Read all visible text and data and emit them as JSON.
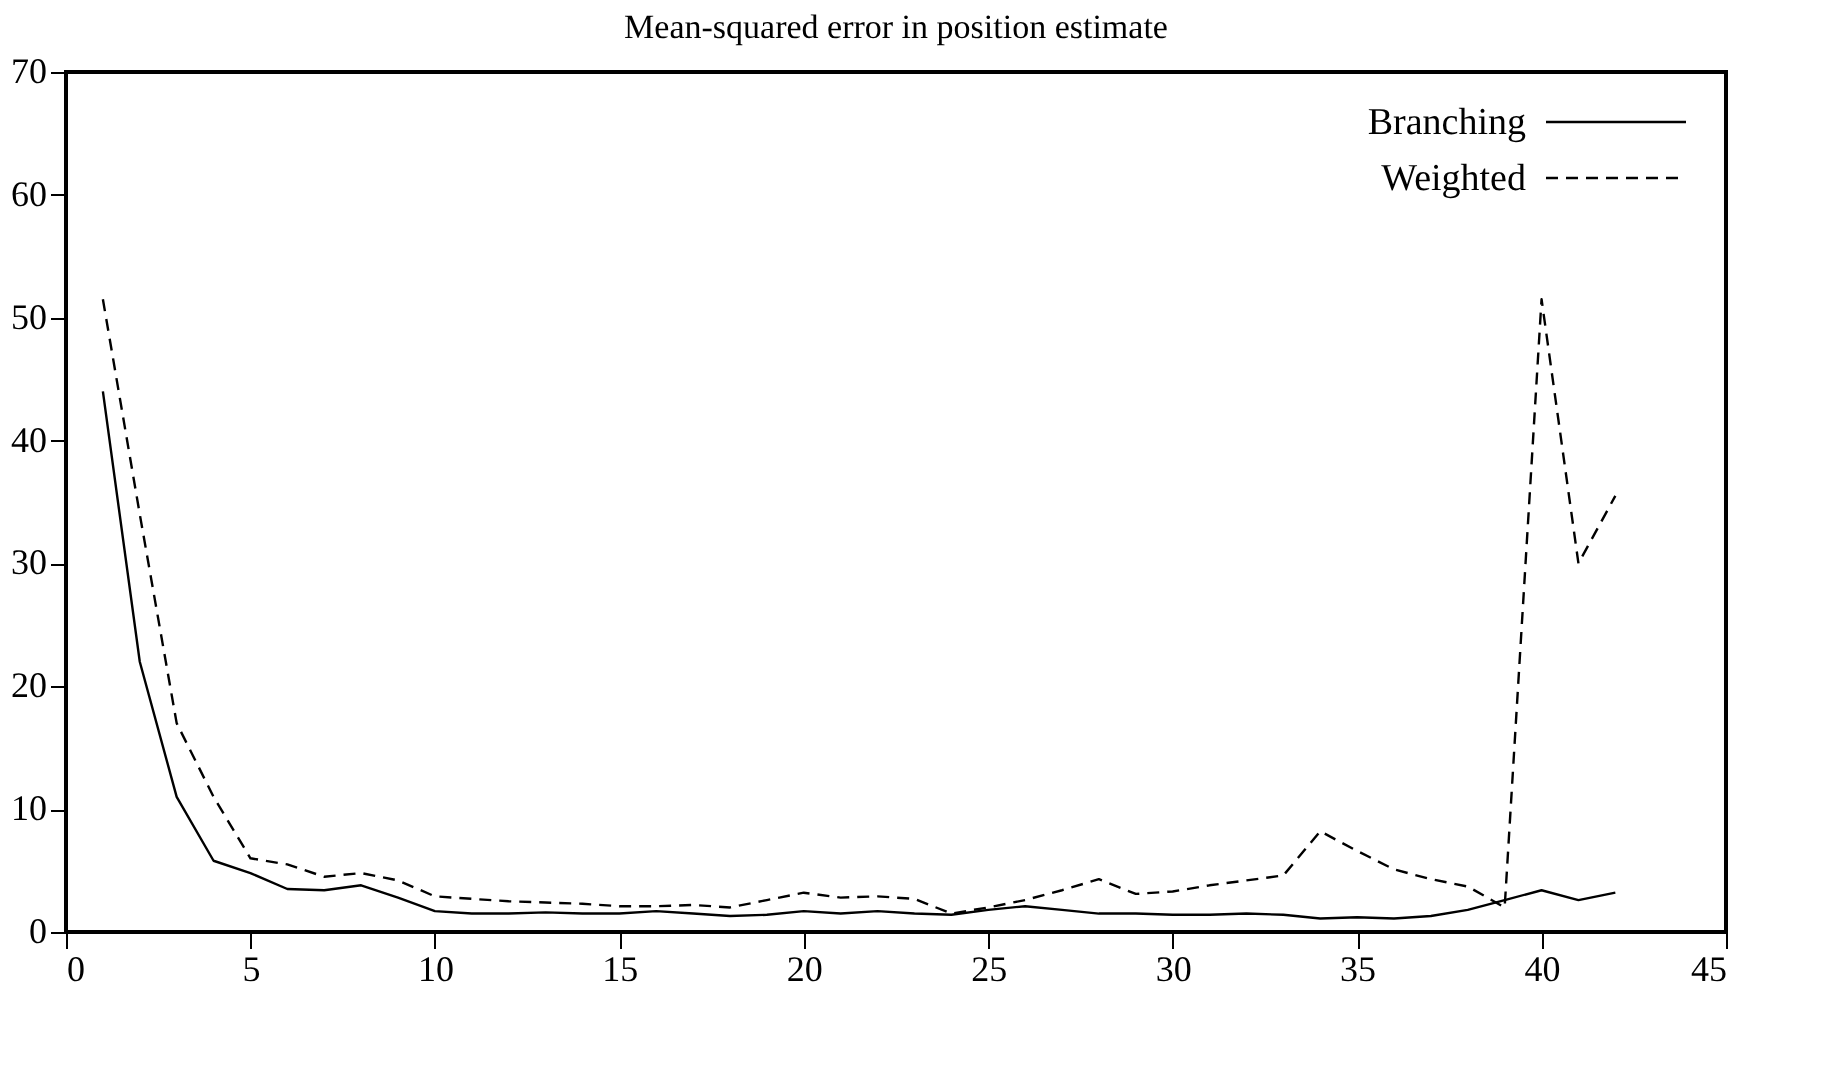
{
  "chart_data": {
    "type": "line",
    "title": "Mean-squared error in position estimate",
    "x": [
      1,
      2,
      3,
      4,
      5,
      6,
      7,
      8,
      9,
      10,
      11,
      12,
      13,
      14,
      15,
      16,
      17,
      18,
      19,
      20,
      21,
      22,
      23,
      24,
      25,
      26,
      27,
      28,
      29,
      30,
      31,
      32,
      33,
      34,
      35,
      36,
      37,
      38,
      39,
      40,
      41,
      42
    ],
    "series": [
      {
        "name": "Branching",
        "color": "#000000",
        "line_style": "solid",
        "values": [
          44,
          22,
          11,
          5.8,
          4.8,
          3.5,
          3.4,
          3.8,
          2.8,
          1.7,
          1.5,
          1.5,
          1.6,
          1.5,
          1.5,
          1.7,
          1.5,
          1.3,
          1.4,
          1.7,
          1.5,
          1.7,
          1.5,
          1.4,
          1.8,
          2.1,
          1.8,
          1.5,
          1.5,
          1.4,
          1.4,
          1.5,
          1.4,
          1.1,
          1.2,
          1.1,
          1.3,
          1.8,
          2.6,
          3.4,
          2.6,
          3.2
        ]
      },
      {
        "name": "Weighted",
        "color": "#000000",
        "line_style": "dashed",
        "values": [
          51.5,
          34,
          17,
          11,
          6,
          5.5,
          4.5,
          4.8,
          4.2,
          2.9,
          2.7,
          2.5,
          2.4,
          2.3,
          2.1,
          2.1,
          2.2,
          2,
          2.6,
          3.2,
          2.8,
          2.9,
          2.7,
          1.5,
          2,
          2.6,
          3.4,
          4.3,
          3.1,
          3.3,
          3.8,
          4.2,
          4.6,
          8.2,
          6.6,
          5.1,
          4.3,
          3.7,
          2,
          51.5,
          30,
          35.5
        ]
      }
    ],
    "xlim": [
      0,
      45
    ],
    "xticks": [
      0,
      5,
      10,
      15,
      20,
      25,
      30,
      35,
      40,
      45
    ],
    "ylim": [
      0,
      70
    ],
    "yticks": [
      0,
      10,
      20,
      30,
      40,
      50,
      60,
      70
    ],
    "grid": false,
    "legend": "top right",
    "marker": "none"
  }
}
